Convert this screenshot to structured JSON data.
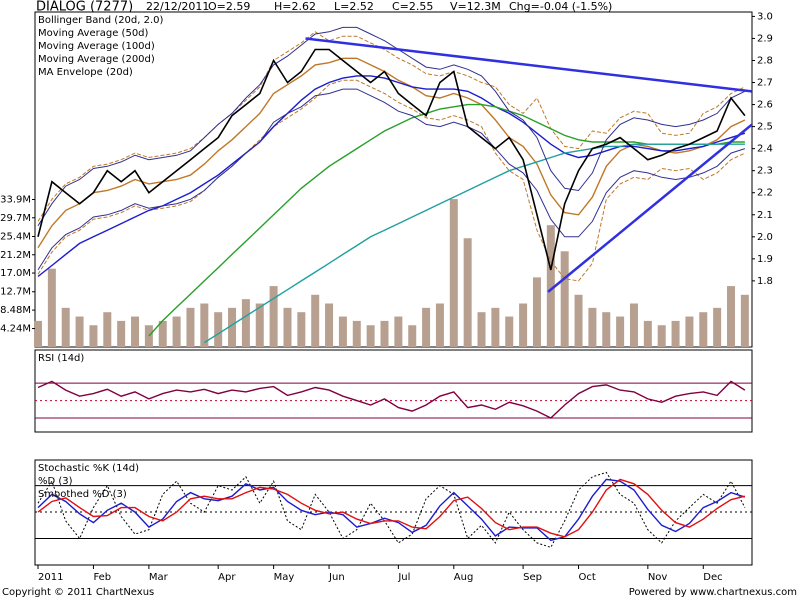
{
  "header": {
    "symbol": "DIALOG (7277)",
    "date": "22/12/2011",
    "open": "O=2.59",
    "high": "H=2.62",
    "low": "L=2.52",
    "close": "C=2.55",
    "volume": "V=12.3M",
    "change": "Chg=-0.04 (-1.5%)"
  },
  "footer": {
    "copyright": "Copyright © 2011 ChartNexus",
    "powered": "Powered by www.chartnexus.com"
  },
  "chart_data": [
    {
      "type": "line",
      "color": "#000000",
      "values": [
        2.0,
        2.25,
        2.2,
        2.15,
        2.2,
        2.3,
        2.25,
        2.3,
        2.2,
        2.25,
        2.3,
        2.35,
        2.4,
        2.45,
        2.55,
        2.6,
        2.65,
        2.8,
        2.7,
        2.75,
        2.85,
        2.85,
        2.8,
        2.75,
        2.7,
        2.75,
        2.65,
        2.6,
        2.55,
        2.7,
        2.75,
        2.5,
        2.45,
        2.4,
        2.45,
        2.35,
        2.1,
        1.85,
        2.15,
        2.3,
        2.4,
        2.42,
        2.45,
        2.4,
        2.35,
        2.37,
        2.4,
        2.42,
        2.45,
        2.48,
        2.63,
        2.55
      ],
      "ylim": [
        1.5,
        3.02
      ],
      "yticks": [
        1.8,
        1.9,
        {
          "value": 2,
          "label": "2.0"
        },
        2.1,
        2.2,
        2.3,
        2.4,
        2.5,
        2.6,
        2.7,
        2.8,
        2.9,
        {
          "value": 3,
          "label": "3.0"
        }
      ],
      "y2lim": [
        0,
        77
      ],
      "y2ticks": [
        {
          "value": 4.24,
          "label": "4.24M"
        },
        {
          "value": 8.48,
          "label": "8.48M"
        },
        {
          "value": 12.7,
          "label": "12.7M"
        },
        {
          "value": 17.0,
          "label": "17.0M"
        },
        {
          "value": 21.2,
          "label": "21.2M"
        },
        {
          "value": 25.4,
          "label": "25.4M"
        },
        {
          "value": 29.7,
          "label": "29.7M"
        },
        {
          "value": 33.9,
          "label": "33.9M"
        }
      ],
      "volume": {
        "axis": "y2",
        "color": "#b8a090",
        "values": [
          6,
          18,
          9,
          7,
          5,
          8,
          6,
          7,
          5,
          6,
          7,
          9,
          10,
          8,
          9,
          11,
          10,
          14,
          9,
          8,
          12,
          10,
          7,
          6,
          5,
          6,
          7,
          5,
          9,
          10,
          34,
          25,
          8,
          9,
          7,
          10,
          16,
          28,
          22,
          12,
          9,
          8,
          7,
          10,
          6,
          5,
          6,
          7,
          8,
          9,
          14,
          12
        ]
      },
      "series": [
        {
          "name": "Bollinger Band (20d, 2.0)",
          "color": "#c07828",
          "values": [
            1.95,
            2.05,
            2.12,
            2.15,
            2.2,
            2.21,
            2.23,
            2.26,
            2.24,
            2.25,
            2.26,
            2.28,
            2.33,
            2.39,
            2.44,
            2.5,
            2.56,
            2.65,
            2.69,
            2.73,
            2.78,
            2.79,
            2.81,
            2.81,
            2.78,
            2.75,
            2.71,
            2.68,
            2.64,
            2.63,
            2.65,
            2.63,
            2.6,
            2.53,
            2.45,
            2.41,
            2.33,
            2.19,
            2.11,
            2.1,
            2.18,
            2.32,
            2.39,
            2.42,
            2.41,
            2.39,
            2.38,
            2.39,
            2.41,
            2.44,
            2.5,
            2.53
          ],
          "upper": [
            2.07,
            2.17,
            2.24,
            2.27,
            2.32,
            2.33,
            2.35,
            2.38,
            2.36,
            2.37,
            2.38,
            2.4,
            2.45,
            2.51,
            2.56,
            2.62,
            2.68,
            2.8,
            2.84,
            2.88,
            2.93,
            2.89,
            2.91,
            2.91,
            2.88,
            2.85,
            2.81,
            2.78,
            2.74,
            2.73,
            2.75,
            2.73,
            2.7,
            2.68,
            2.6,
            2.56,
            2.63,
            2.49,
            2.41,
            2.4,
            2.48,
            2.47,
            2.54,
            2.57,
            2.56,
            2.47,
            2.46,
            2.47,
            2.56,
            2.59,
            2.65,
            2.68
          ],
          "lower": [
            1.83,
            1.93,
            2.0,
            2.03,
            2.08,
            2.09,
            2.11,
            2.14,
            2.12,
            2.13,
            2.14,
            2.16,
            2.21,
            2.27,
            2.32,
            2.38,
            2.44,
            2.5,
            2.54,
            2.58,
            2.63,
            2.69,
            2.71,
            2.71,
            2.68,
            2.65,
            2.61,
            2.58,
            2.54,
            2.53,
            2.55,
            2.53,
            2.5,
            2.38,
            2.3,
            2.26,
            2.03,
            1.89,
            1.81,
            1.8,
            1.88,
            2.17,
            2.24,
            2.27,
            2.26,
            2.31,
            2.3,
            2.31,
            2.26,
            2.29,
            2.35,
            2.38
          ]
        },
        {
          "name": "Moving Average (50d)",
          "color": "#1c1cd0",
          "values": [
            1.82,
            1.87,
            1.92,
            1.97,
            2.0,
            2.03,
            2.06,
            2.09,
            2.12,
            2.14,
            2.17,
            2.2,
            2.24,
            2.28,
            2.33,
            2.38,
            2.43,
            2.5,
            2.56,
            2.62,
            2.67,
            2.7,
            2.72,
            2.73,
            2.73,
            2.72,
            2.7,
            2.68,
            2.67,
            2.67,
            2.67,
            2.66,
            2.63,
            2.59,
            2.56,
            2.52,
            2.47,
            2.42,
            2.38,
            2.36,
            2.37,
            2.39,
            2.41,
            2.41,
            2.4,
            2.39,
            2.39,
            2.4,
            2.41,
            2.43,
            2.45,
            2.47
          ]
        },
        {
          "name": "Moving Average (100d)",
          "color": "#28a028",
          "values": [
            null,
            null,
            null,
            null,
            null,
            null,
            null,
            null,
            1.55,
            1.62,
            1.68,
            1.74,
            1.8,
            1.86,
            1.92,
            1.98,
            2.04,
            2.1,
            2.16,
            2.22,
            2.27,
            2.32,
            2.36,
            2.4,
            2.44,
            2.48,
            2.51,
            2.54,
            2.56,
            2.58,
            2.59,
            2.6,
            2.6,
            2.59,
            2.57,
            2.55,
            2.52,
            2.49,
            2.46,
            2.44,
            2.43,
            2.43,
            2.43,
            2.43,
            2.42,
            2.42,
            2.42,
            2.42,
            2.42,
            2.42,
            2.43,
            2.43
          ]
        },
        {
          "name": "Moving Average (200d)",
          "color": "#20a0a0",
          "values": [
            null,
            null,
            null,
            null,
            null,
            null,
            null,
            null,
            null,
            null,
            null,
            null,
            1.52,
            1.56,
            1.6,
            1.64,
            1.68,
            1.72,
            1.76,
            1.8,
            1.84,
            1.88,
            1.92,
            1.96,
            2.0,
            2.03,
            2.06,
            2.09,
            2.12,
            2.15,
            2.18,
            2.21,
            2.24,
            2.27,
            2.3,
            2.32,
            2.34,
            2.36,
            2.38,
            2.39,
            2.4,
            2.41,
            2.41,
            2.42,
            2.42,
            2.42,
            2.42,
            2.42,
            2.42,
            2.42,
            2.42,
            2.42
          ]
        },
        {
          "name": "MA Envelope (20d)",
          "color": "#303090",
          "upper": [
            2.05,
            2.15,
            2.23,
            2.26,
            2.31,
            2.32,
            2.34,
            2.37,
            2.35,
            2.36,
            2.37,
            2.39,
            2.45,
            2.51,
            2.56,
            2.63,
            2.69,
            2.78,
            2.82,
            2.87,
            2.92,
            2.93,
            2.95,
            2.95,
            2.92,
            2.89,
            2.85,
            2.81,
            2.77,
            2.76,
            2.78,
            2.76,
            2.73,
            2.66,
            2.57,
            2.53,
            2.45,
            2.3,
            2.22,
            2.21,
            2.29,
            2.44,
            2.51,
            2.54,
            2.53,
            2.51,
            2.5,
            2.51,
            2.53,
            2.56,
            2.63,
            2.66
          ],
          "lower": [
            1.85,
            1.95,
            2.01,
            2.04,
            2.09,
            2.1,
            2.12,
            2.15,
            2.13,
            2.14,
            2.15,
            2.17,
            2.21,
            2.27,
            2.32,
            2.38,
            2.43,
            2.52,
            2.56,
            2.59,
            2.64,
            2.65,
            2.67,
            2.67,
            2.64,
            2.61,
            2.57,
            2.55,
            2.51,
            2.5,
            2.52,
            2.5,
            2.47,
            2.4,
            2.33,
            2.29,
            2.21,
            2.08,
            2.0,
            2.0,
            2.07,
            2.2,
            2.27,
            2.3,
            2.29,
            2.27,
            2.26,
            2.27,
            2.29,
            2.32,
            2.38,
            2.4
          ]
        }
      ],
      "trendlines": [
        {
          "x": [
            19.3,
            51.5
          ],
          "y": [
            2.9,
            2.66
          ]
        },
        {
          "x": [
            36.8,
            52.1
          ],
          "y": [
            1.75,
            2.54
          ]
        }
      ]
    },
    {
      "type": "line",
      "ylim": [
        14,
        108
      ],
      "levels": [
        30,
        50,
        70
      ],
      "series": [
        {
          "name": "RSI (14d)",
          "color": "#800040",
          "values": [
            65,
            72,
            62,
            55,
            58,
            63,
            55,
            60,
            52,
            58,
            62,
            60,
            63,
            58,
            62,
            60,
            64,
            66,
            56,
            60,
            65,
            62,
            55,
            50,
            45,
            52,
            42,
            38,
            45,
            55,
            60,
            42,
            45,
            40,
            48,
            44,
            38,
            30,
            45,
            58,
            66,
            68,
            62,
            60,
            52,
            48,
            55,
            58,
            60,
            56,
            72,
            62
          ]
        }
      ]
    },
    {
      "type": "line",
      "ylim": [
        -10,
        109
      ],
      "levels": [
        20,
        50,
        80
      ],
      "categories": [
        "2011",
        null,
        null,
        null,
        "Feb",
        null,
        null,
        null,
        "Mar",
        null,
        null,
        null,
        null,
        "Apr",
        null,
        null,
        null,
        "May",
        null,
        null,
        null,
        "Jun",
        null,
        null,
        null,
        null,
        "Jul",
        null,
        null,
        null,
        "Aug",
        null,
        null,
        null,
        null,
        "Sep",
        null,
        null,
        null,
        "Oct",
        null,
        null,
        null,
        null,
        "Nov",
        null,
        null,
        null,
        "Dec",
        null,
        null,
        null
      ],
      "series": [
        {
          "name": "Stochastic %K (14d)",
          "color": "#000000",
          "values": [
            60,
            85,
            40,
            20,
            55,
            80,
            45,
            25,
            30,
            70,
            85,
            60,
            50,
            80,
            75,
            90,
            60,
            85,
            40,
            30,
            70,
            50,
            20,
            30,
            60,
            40,
            15,
            25,
            65,
            80,
            70,
            20,
            35,
            15,
            50,
            30,
            15,
            10,
            40,
            75,
            90,
            95,
            70,
            60,
            30,
            15,
            40,
            55,
            70,
            60,
            85,
            55
          ]
        },
        {
          "name": "%D (3)",
          "color": "#1c1cd0",
          "values": [
            55,
            70,
            62,
            48,
            38,
            52,
            60,
            50,
            33,
            42,
            62,
            72,
            65,
            63,
            68,
            82,
            75,
            78,
            62,
            52,
            47,
            50,
            47,
            33,
            37,
            43,
            38,
            27,
            35,
            57,
            72,
            57,
            42,
            23,
            33,
            32,
            32,
            18,
            22,
            42,
            68,
            87,
            85,
            75,
            53,
            35,
            28,
            37,
            55,
            62,
            72,
            67
          ]
        },
        {
          "name": "Smoothed %D (3)",
          "color": "#e01010",
          "values": [
            50,
            62,
            66,
            55,
            45,
            46,
            55,
            55,
            45,
            40,
            50,
            65,
            68,
            65,
            65,
            72,
            78,
            76,
            70,
            60,
            52,
            48,
            50,
            42,
            37,
            40,
            40,
            33,
            31,
            45,
            63,
            67,
            54,
            38,
            30,
            33,
            33,
            26,
            22,
            30,
            50,
            75,
            87,
            82,
            70,
            52,
            38,
            33,
            42,
            54,
            64,
            68
          ]
        }
      ]
    }
  ]
}
